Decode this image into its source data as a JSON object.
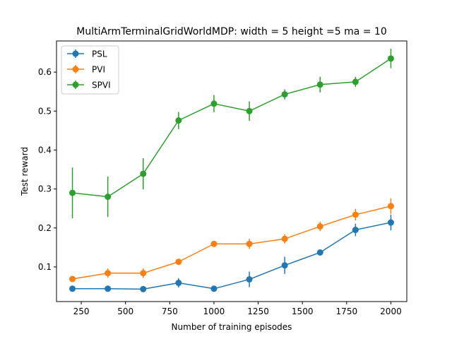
{
  "chart_data": {
    "type": "line",
    "title": "MultiArmTerminalGridWorldMDP: width = 5 height =5 ma = 10",
    "xlabel": "Number of training episodes",
    "ylabel": "Test reward",
    "xlim": [
      110,
      2090
    ],
    "ylim": [
      0.011,
      0.68
    ],
    "xticks": [
      250,
      500,
      750,
      1000,
      1250,
      1500,
      1750,
      2000
    ],
    "yticks": [
      0.1,
      0.2,
      0.3,
      0.4,
      0.5,
      0.6
    ],
    "grid": false,
    "legend_position": "top-left",
    "x": [
      200,
      400,
      600,
      800,
      1000,
      1200,
      1400,
      1600,
      1800,
      2000
    ],
    "series": [
      {
        "name": "PSL",
        "color": "#1f77b4",
        "values": [
          0.044,
          0.044,
          0.043,
          0.059,
          0.044,
          0.068,
          0.104,
          0.137,
          0.195,
          0.214
        ],
        "errors": [
          0.003,
          0.003,
          0.003,
          0.012,
          0.003,
          0.02,
          0.022,
          0.005,
          0.016,
          0.02
        ]
      },
      {
        "name": "PVI",
        "color": "#ff7f0e",
        "values": [
          0.069,
          0.084,
          0.084,
          0.113,
          0.159,
          0.159,
          0.172,
          0.204,
          0.234,
          0.256
        ],
        "errors": [
          0.003,
          0.012,
          0.012,
          0.005,
          0.004,
          0.013,
          0.012,
          0.012,
          0.015,
          0.02
        ]
      },
      {
        "name": "SPVI",
        "color": "#2ca02c",
        "values": [
          0.29,
          0.28,
          0.339,
          0.476,
          0.519,
          0.5,
          0.543,
          0.568,
          0.575,
          0.635
        ],
        "errors": [
          0.065,
          0.052,
          0.04,
          0.022,
          0.022,
          0.025,
          0.013,
          0.02,
          0.013,
          0.025
        ]
      }
    ]
  }
}
